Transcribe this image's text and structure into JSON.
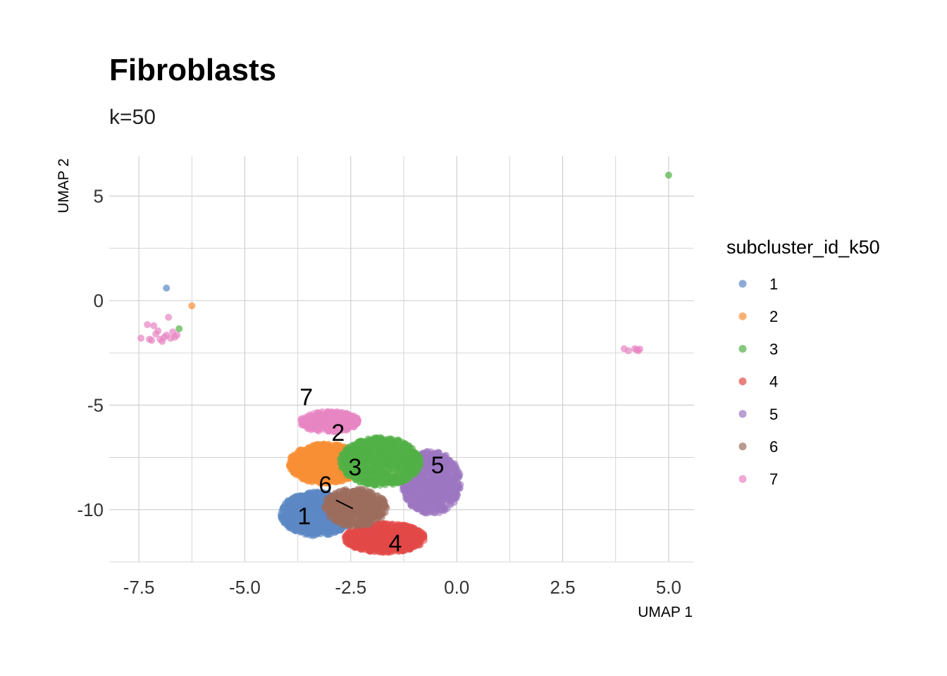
{
  "chart_data": {
    "type": "scatter",
    "title": "Fibroblasts",
    "subtitle": "k=50",
    "xlabel": "UMAP 1",
    "ylabel": "UMAP 2",
    "xlim": [
      -8.2,
      5.6
    ],
    "ylim": [
      -12.5,
      6.9
    ],
    "x_ticks": [
      -7.5,
      -5.0,
      -2.5,
      0.0,
      2.5,
      5.0
    ],
    "x_tick_labels": [
      "-7.5",
      "-5.0",
      "-2.5",
      "0.0",
      "2.5",
      "5.0"
    ],
    "y_ticks": [
      5,
      0,
      -5,
      -10
    ],
    "y_tick_labels": [
      "5",
      "0",
      "-5",
      "-10"
    ],
    "grid": true,
    "legend": {
      "title": "subcluster_id_k50",
      "position": "right",
      "entries": [
        "1",
        "2",
        "3",
        "4",
        "5",
        "6",
        "7"
      ]
    },
    "series": [
      {
        "name": "1",
        "color": "#5b88c5",
        "regions": [
          {
            "cx": -3.3,
            "cy": -10.2,
            "rx": 0.85,
            "ry": 1.05,
            "n": 900
          }
        ],
        "outliers": [
          [
            -6.85,
            0.6
          ]
        ]
      },
      {
        "name": "2",
        "color": "#f98f36",
        "regions": [
          {
            "cx": -3.1,
            "cy": -7.8,
            "rx": 0.85,
            "ry": 0.95,
            "n": 850
          }
        ],
        "outliers": [
          [
            -6.25,
            -0.25
          ]
        ]
      },
      {
        "name": "3",
        "color": "#52b046",
        "regions": [
          {
            "cx": -1.8,
            "cy": -7.7,
            "rx": 0.95,
            "ry": 1.15,
            "n": 850
          }
        ],
        "outliers": [
          [
            -6.55,
            -1.35
          ],
          [
            5.0,
            6.0
          ]
        ]
      },
      {
        "name": "4",
        "color": "#e34a48",
        "regions": [
          {
            "cx": -1.7,
            "cy": -11.35,
            "rx": 0.95,
            "ry": 0.7,
            "n": 700
          }
        ],
        "outliers": []
      },
      {
        "name": "5",
        "color": "#9d76c1",
        "regions": [
          {
            "cx": -0.6,
            "cy": -8.7,
            "rx": 0.7,
            "ry": 1.5,
            "n": 800
          }
        ],
        "outliers": []
      },
      {
        "name": "6",
        "color": "#9c6d5e",
        "regions": [
          {
            "cx": -2.4,
            "cy": -9.9,
            "rx": 0.75,
            "ry": 0.9,
            "n": 500
          }
        ],
        "outliers": []
      },
      {
        "name": "7",
        "color": "#e885c3",
        "regions": [
          {
            "cx": -3.0,
            "cy": -5.8,
            "rx": 0.7,
            "ry": 0.5,
            "n": 400
          }
        ],
        "outliers": [
          [
            -7.45,
            -1.8
          ],
          [
            -7.3,
            -1.15
          ],
          [
            -7.15,
            -1.2
          ],
          [
            -7.0,
            -1.85
          ],
          [
            -6.95,
            -1.95
          ],
          [
            -6.85,
            -1.65
          ],
          [
            -6.8,
            -0.8
          ],
          [
            -6.7,
            -1.5
          ],
          [
            -7.1,
            -1.6
          ],
          [
            -6.9,
            -1.75
          ],
          [
            -6.75,
            -1.8
          ],
          [
            -7.25,
            -1.85
          ],
          [
            -7.05,
            -1.45
          ],
          [
            -6.65,
            -1.75
          ],
          [
            -6.6,
            -1.65
          ],
          [
            -7.2,
            -1.9
          ],
          [
            3.95,
            -2.3
          ],
          [
            4.05,
            -2.4
          ],
          [
            4.2,
            -2.3
          ],
          [
            4.28,
            -2.4
          ],
          [
            4.32,
            -2.32
          ],
          [
            4.25,
            -2.35
          ]
        ]
      }
    ],
    "cluster_labels": [
      {
        "text": "7",
        "x": -3.55,
        "y": -5.0
      },
      {
        "text": "2",
        "x": -2.8,
        "y": -6.7
      },
      {
        "text": "3",
        "x": -2.4,
        "y": -8.35
      },
      {
        "text": "5",
        "x": -0.45,
        "y": -8.25
      },
      {
        "text": "6",
        "x": -3.1,
        "y": -9.2
      },
      {
        "text": "1",
        "x": -3.6,
        "y": -10.7
      },
      {
        "text": "4",
        "x": -1.45,
        "y": -12.0
      }
    ]
  }
}
